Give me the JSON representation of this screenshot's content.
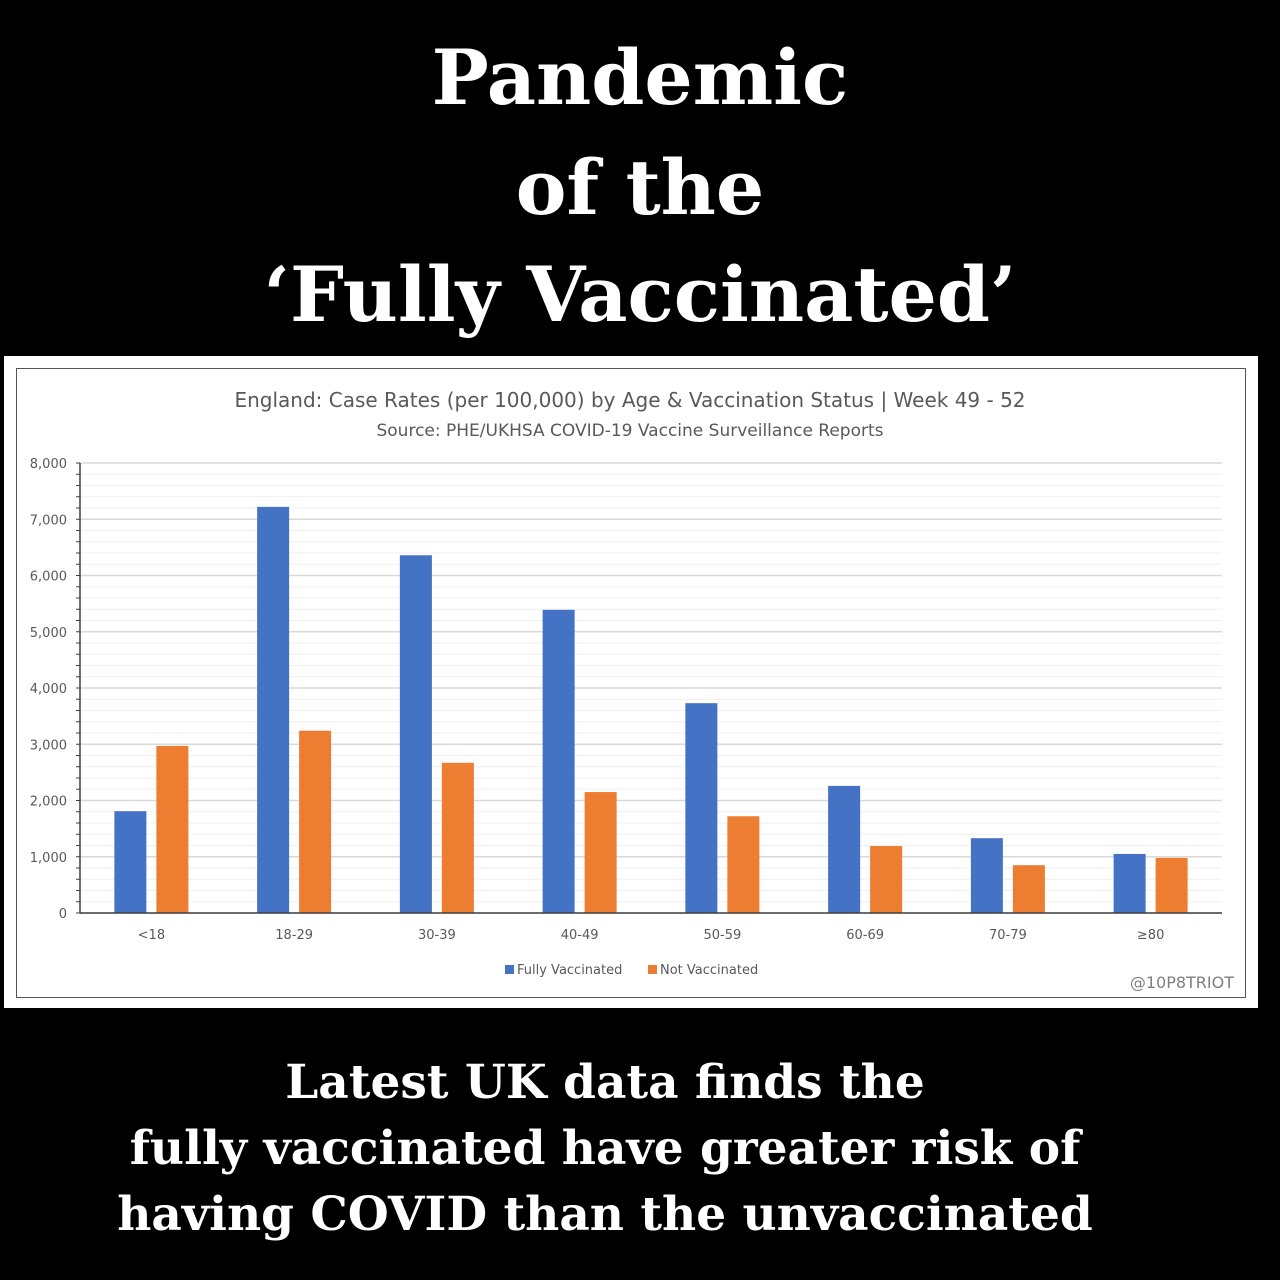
{
  "headline": {
    "line1": "Pandemic",
    "line2": "of the",
    "line3": "‘Fully Vaccinated’"
  },
  "caption": {
    "line1": "Latest UK data finds the",
    "line2": "fully vaccinated have greater risk of",
    "line3": "having COVID than the unvaccinated"
  },
  "watermark": "@10P8TRIOT",
  "chart_data": {
    "type": "bar",
    "title": "England: Case Rates (per 100,000) by Age & Vaccination Status | Week 49 - 52",
    "subtitle": "Source: PHE/UKHSA COVID-19 Vaccine Surveillance Reports",
    "xlabel": "",
    "ylabel": "",
    "ylim": [
      0,
      8000
    ],
    "yticks": [
      0,
      1000,
      2000,
      3000,
      4000,
      5000,
      6000,
      7000,
      8000
    ],
    "ytick_labels": [
      "0",
      "1,000",
      "2,000",
      "3,000",
      "4,000",
      "5,000",
      "6,000",
      "7,000",
      "8,000"
    ],
    "minor_grid_step": 200,
    "grid": true,
    "legend_position": "bottom",
    "categories": [
      "<18",
      "18-29",
      "30-39",
      "40-49",
      "50-59",
      "60-69",
      "70-79",
      "≥80"
    ],
    "series": [
      {
        "name": "Fully Vaccinated",
        "color": "#4472c4",
        "values": [
          1810,
          7220,
          6360,
          5390,
          3730,
          2260,
          1330,
          1050
        ]
      },
      {
        "name": "Not Vaccinated",
        "color": "#ed7d31",
        "values": [
          2970,
          3240,
          2670,
          2150,
          1720,
          1190,
          850,
          980
        ]
      }
    ]
  }
}
